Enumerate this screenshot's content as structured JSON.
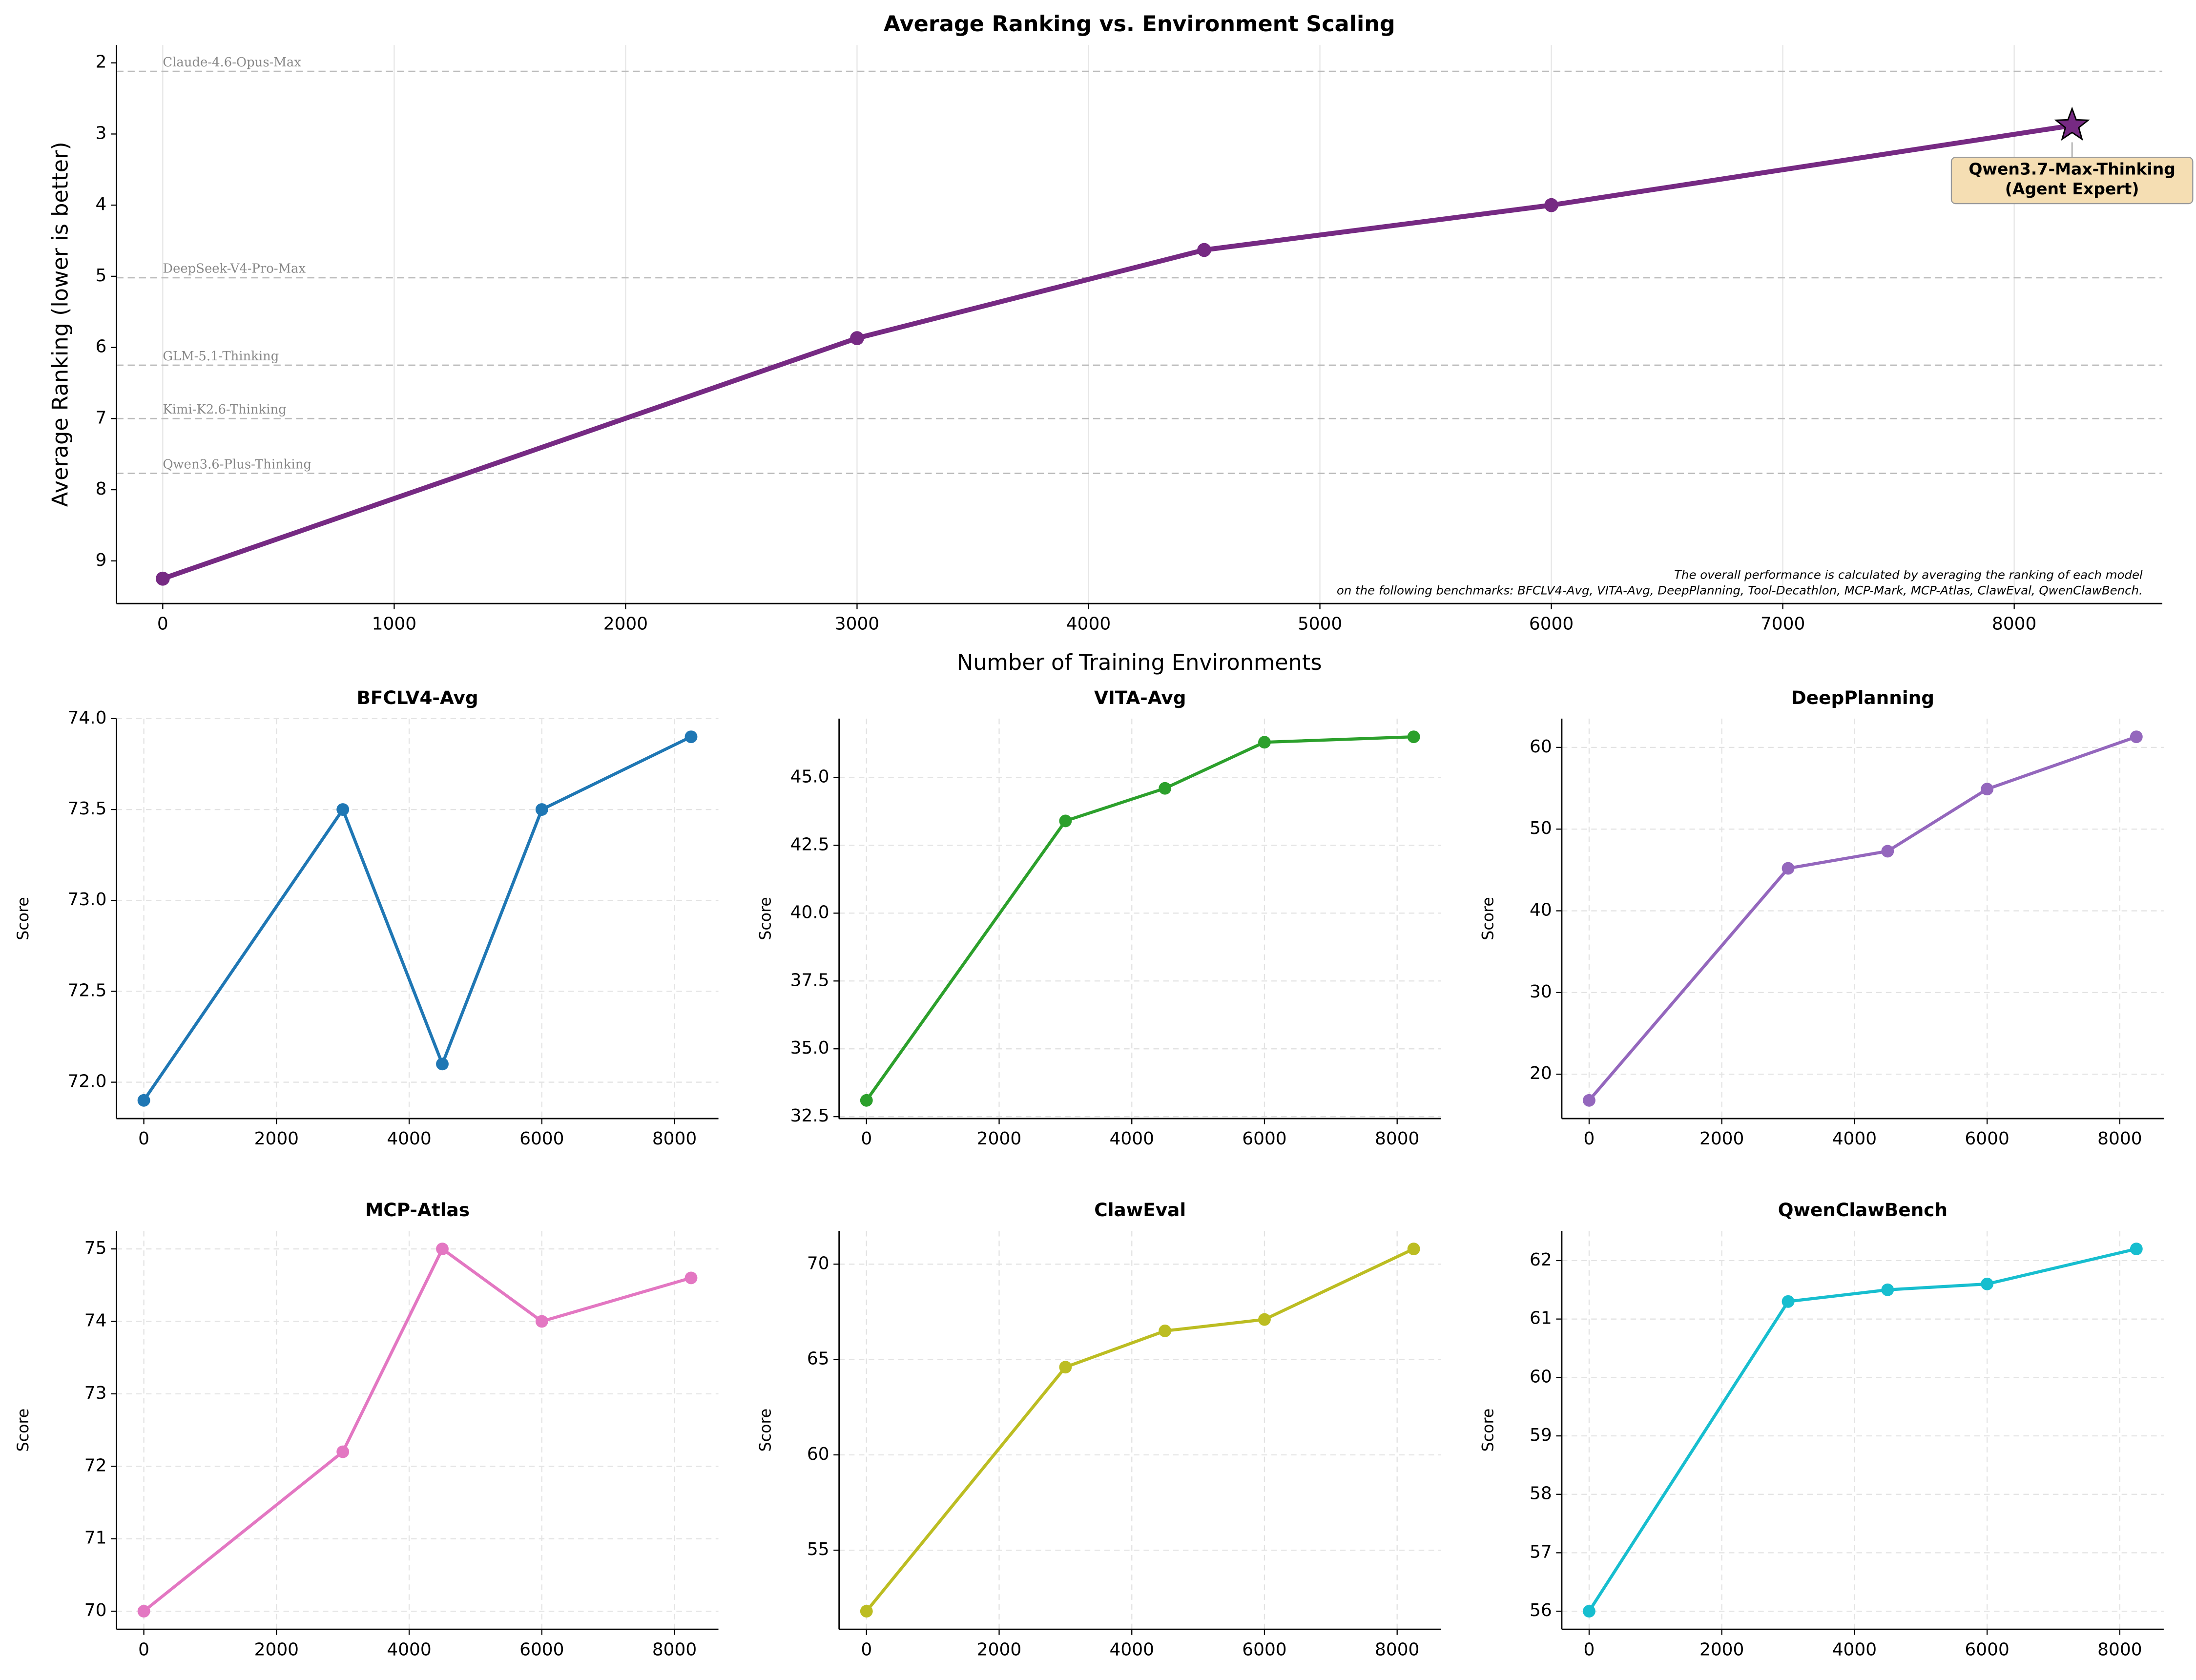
{
  "chart_data": [
    {
      "type": "line",
      "title": "Average Ranking vs. Environment Scaling",
      "xlabel": "Number of Training Environments",
      "ylabel": "Average Ranking (lower is better)",
      "x": [
        0,
        3000,
        4500,
        6000,
        8250
      ],
      "values": [
        9.25,
        5.87,
        4.63,
        4.0,
        2.88
      ],
      "color": "#762a83",
      "xlim": [
        -200,
        8640
      ],
      "ylim": [
        9.6,
        1.75
      ],
      "xticks": [
        0,
        1000,
        2000,
        3000,
        4000,
        5000,
        6000,
        7000,
        8000
      ],
      "yticks": [
        2,
        3,
        4,
        5,
        6,
        7,
        8,
        9
      ],
      "grid": "x",
      "last_marker": "star",
      "reference_lines": [
        {
          "label": "Claude-4.6-Opus-Max",
          "value": 2.12
        },
        {
          "label": "DeepSeek-V4-Pro-Max",
          "value": 5.02
        },
        {
          "label": "GLM-5.1-Thinking",
          "value": 6.25
        },
        {
          "label": "Kimi-K2.6-Thinking",
          "value": 7.0
        },
        {
          "label": "Qwen3.6-Plus-Thinking",
          "value": 7.77
        }
      ],
      "annotation": [
        "Qwen3.7-Max-Thinking",
        "(Agent Expert)"
      ],
      "note": [
        "The overall performance is calculated by averaging the ranking of each model",
        "on the following benchmarks: BFCLV4-Avg, VITA-Avg, DeepPlanning, Tool-Decathlon, MCP-Mark, MCP-Atlas, ClawEval, QwenClawBench."
      ]
    },
    {
      "type": "line",
      "title": "BFCLV4-Avg",
      "ylabel": "Score",
      "x": [
        0,
        3000,
        4500,
        6000,
        8250
      ],
      "values": [
        71.9,
        73.5,
        72.1,
        73.5,
        73.9
      ],
      "color": "#1f77b4",
      "xlim": [
        -412.5,
        8662.5
      ],
      "ylim": [
        71.8,
        74.0
      ],
      "xticks": [
        0,
        2000,
        4000,
        6000,
        8000
      ],
      "yticks": [
        {
          "value": 72,
          "label": "72.0"
        },
        72.5,
        {
          "value": 73,
          "label": "73.0"
        },
        73.5,
        {
          "value": 74,
          "label": "74.0"
        }
      ],
      "grid": "both"
    },
    {
      "type": "line",
      "title": "VITA-Avg",
      "ylabel": "Score",
      "x": [
        0,
        3000,
        4500,
        6000,
        8250
      ],
      "values": [
        33.1,
        43.4,
        44.6,
        46.3,
        46.5
      ],
      "color": "#2ca02c",
      "xlim": [
        -412.5,
        8662.5
      ],
      "ylim": [
        32.43,
        47.17
      ],
      "xticks": [
        0,
        2000,
        4000,
        6000,
        8000
      ],
      "yticks": [
        32.5,
        {
          "value": 35,
          "label": "35.0"
        },
        37.5,
        {
          "value": 40,
          "label": "40.0"
        },
        42.5,
        {
          "value": 45,
          "label": "45.0"
        }
      ],
      "grid": "both"
    },
    {
      "type": "line",
      "title": "DeepPlanning",
      "ylabel": "Score",
      "x": [
        0,
        3000,
        4500,
        6000,
        8250
      ],
      "values": [
        16.8,
        45.2,
        47.3,
        54.9,
        61.3
      ],
      "color": "#9467bd",
      "xlim": [
        -412.5,
        8662.5
      ],
      "ylim": [
        14.575,
        63.525
      ],
      "xticks": [
        0,
        2000,
        4000,
        6000,
        8000
      ],
      "yticks": [
        20,
        30,
        40,
        50,
        60
      ],
      "grid": "both"
    },
    {
      "type": "line",
      "title": "MCP-Atlas",
      "ylabel": "Score",
      "x": [
        0,
        3000,
        4500,
        6000,
        8250
      ],
      "values": [
        70.0,
        72.2,
        75.0,
        74.0,
        74.6
      ],
      "color": "#e377c2",
      "xlim": [
        -412.5,
        8662.5
      ],
      "ylim": [
        69.75,
        75.25
      ],
      "xticks": [
        0,
        2000,
        4000,
        6000,
        8000
      ],
      "yticks": [
        70,
        71,
        72,
        73,
        74,
        75
      ],
      "grid": "both"
    },
    {
      "type": "line",
      "title": "ClawEval",
      "ylabel": "Score",
      "x": [
        0,
        3000,
        4500,
        6000,
        8250
      ],
      "values": [
        51.8,
        64.6,
        66.5,
        67.1,
        70.8
      ],
      "color": "#bcbd22",
      "xlim": [
        -412.5,
        8662.5
      ],
      "ylim": [
        50.85,
        71.75
      ],
      "xticks": [
        0,
        2000,
        4000,
        6000,
        8000
      ],
      "yticks": [
        55,
        60,
        65,
        70
      ],
      "grid": "both"
    },
    {
      "type": "line",
      "title": "QwenClawBench",
      "ylabel": "Score",
      "x": [
        0,
        3000,
        4500,
        6000,
        8250
      ],
      "values": [
        56.0,
        61.3,
        61.5,
        61.6,
        62.2
      ],
      "color": "#17becf",
      "xlim": [
        -412.5,
        8662.5
      ],
      "ylim": [
        55.69,
        62.51
      ],
      "xticks": [
        0,
        2000,
        4000,
        6000,
        8000
      ],
      "yticks": [
        56,
        57,
        58,
        59,
        60,
        61,
        62
      ],
      "grid": "both"
    }
  ]
}
